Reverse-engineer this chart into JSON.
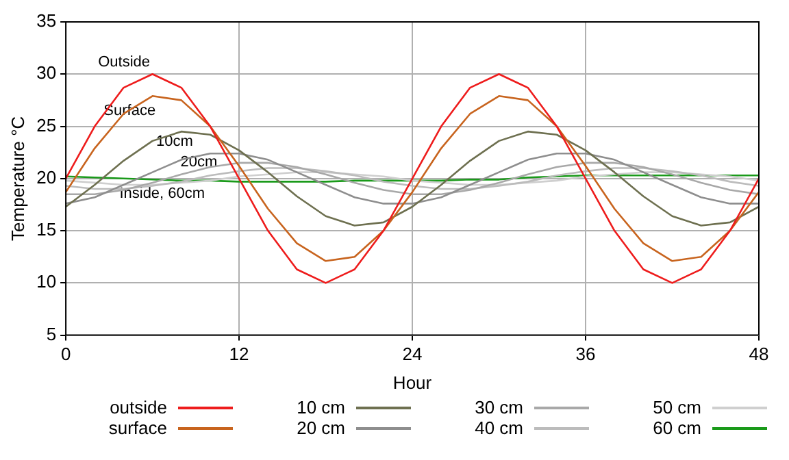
{
  "chart_data": {
    "type": "line",
    "xlabel": "Hour",
    "ylabel": "Temperature °C",
    "x": [
      0,
      2,
      4,
      6,
      8,
      10,
      12,
      14,
      16,
      18,
      20,
      22,
      24,
      26,
      28,
      30,
      32,
      34,
      36,
      38,
      40,
      42,
      44,
      46,
      48
    ],
    "xlim": [
      0,
      48
    ],
    "xticks": [
      0,
      12,
      24,
      36,
      48
    ],
    "ylim": [
      5,
      35
    ],
    "yticks": [
      5,
      10,
      15,
      20,
      25,
      30,
      35
    ],
    "grid": true,
    "legend": "bottom",
    "marker": "none",
    "line_style": "solid",
    "series": [
      {
        "name": "outside",
        "color": "#ee1c1c",
        "values": [
          20,
          25,
          28.7,
          30,
          28.7,
          25,
          20,
          15,
          11.3,
          10,
          11.3,
          15,
          20,
          25,
          28.7,
          30,
          28.7,
          25,
          20,
          15,
          11.3,
          10,
          11.3,
          15,
          20
        ]
      },
      {
        "name": "surface",
        "color": "#c8641e",
        "values": [
          18.7,
          22.9,
          26.2,
          27.9,
          27.5,
          25,
          21.2,
          17.1,
          13.8,
          12.1,
          12.5,
          15,
          18.7,
          22.9,
          26.2,
          27.9,
          27.5,
          25,
          21.2,
          17.1,
          13.8,
          12.1,
          12.5,
          15,
          18.7
        ]
      },
      {
        "name": "10 cm",
        "color": "#6e7050",
        "values": [
          17.3,
          19.4,
          21.7,
          23.6,
          24.5,
          24.2,
          22.7,
          20.6,
          18.3,
          16.4,
          15.5,
          15.8,
          17.3,
          19.4,
          21.7,
          23.6,
          24.5,
          24.2,
          22.7,
          20.6,
          18.3,
          16.4,
          15.5,
          15.8,
          17.3
        ]
      },
      {
        "name": "20 cm",
        "color": "#8e8e8e",
        "values": [
          17.6,
          18.2,
          19.4,
          20.6,
          21.8,
          22.4,
          22.4,
          21.8,
          20.6,
          19.4,
          18.2,
          17.6,
          17.6,
          18.2,
          19.4,
          20.6,
          21.8,
          22.4,
          22.4,
          21.8,
          20.6,
          19.4,
          18.2,
          17.6,
          17.6
        ]
      },
      {
        "name": "30 cm",
        "color": "#a8a8a8",
        "values": [
          18.5,
          18.5,
          18.9,
          19.6,
          20.4,
          21.1,
          21.5,
          21.5,
          21.1,
          20.4,
          19.6,
          18.9,
          18.5,
          18.5,
          18.9,
          19.6,
          20.4,
          21.1,
          21.5,
          21.5,
          21.1,
          20.4,
          19.6,
          18.9,
          18.5
        ]
      },
      {
        "name": "40 cm",
        "color": "#bcbcbc",
        "values": [
          19.3,
          19,
          19,
          19.3,
          19.7,
          20.3,
          20.7,
          21,
          21,
          20.7,
          20.3,
          19.7,
          19.3,
          19,
          19,
          19.3,
          19.7,
          20.3,
          20.7,
          21,
          21,
          20.7,
          20.3,
          19.7,
          19.3
        ]
      },
      {
        "name": "50 cm",
        "color": "#cfcfcf",
        "values": [
          19.8,
          19.6,
          19.4,
          19.4,
          19.6,
          19.8,
          20.2,
          20.4,
          20.6,
          20.6,
          20.4,
          20.2,
          19.8,
          19.6,
          19.4,
          19.4,
          19.6,
          19.8,
          20.2,
          20.4,
          20.6,
          20.6,
          20.4,
          20.2,
          19.8
        ]
      },
      {
        "name": "60 cm",
        "color": "#1a9a1a",
        "values": [
          20.2,
          20.1,
          20,
          19.9,
          19.8,
          19.8,
          19.7,
          19.7,
          19.7,
          19.7,
          19.8,
          19.8,
          19.8,
          19.8,
          19.9,
          19.9,
          20.1,
          20.2,
          20.3,
          20.3,
          20.3,
          20.3,
          20.3,
          20.3,
          20.3
        ]
      }
    ],
    "annotations": [
      "Outside",
      "Surface",
      "10cm",
      "20cm",
      "Inside, 60cm"
    ]
  }
}
